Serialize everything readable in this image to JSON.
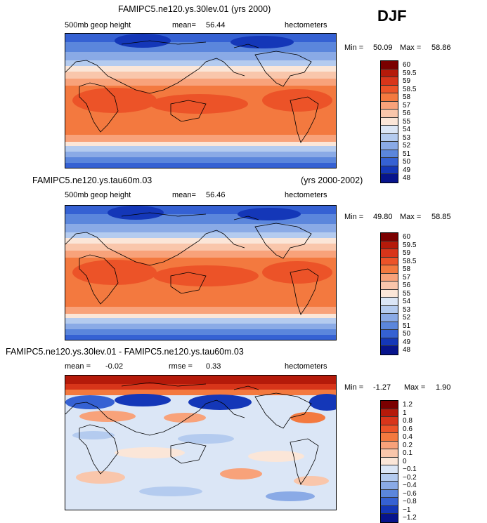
{
  "season": "DJF",
  "units": "hectometers",
  "field": "500mb geop height",
  "panel1": {
    "title": "FAMIPC5.ne120.ys.30lev.01 (yrs 2000)",
    "mean_label": "mean=",
    "mean": "56.44",
    "min_label": "Min =",
    "min": "50.09",
    "max_label": "Max =",
    "max": "58.86"
  },
  "panel2": {
    "title": "FAMIPC5.ne120.ys.tau60m.03",
    "years": "(yrs 2000-2002)",
    "mean_label": "mean=",
    "mean": "56.46",
    "min_label": "Min =",
    "min": "49.80",
    "max_label": "Max =",
    "max": "58.85"
  },
  "panel3": {
    "title": "FAMIPC5.ne120.ys.30lev.01 - FAMIPC5.ne120.ys.tau60m.03",
    "mean_label": "mean =",
    "mean": "-0.02",
    "rmse_label": "rmse =",
    "rmse": "0.33",
    "min_label": "Min =",
    "min": "-1.27",
    "max_label": "Max =",
    "max": "1.90"
  },
  "scale_abs": {
    "labels": [
      "60",
      "59.5",
      "59",
      "58.5",
      "58",
      "57",
      "56",
      "55",
      "54",
      "53",
      "52",
      "51",
      "50",
      "49",
      "48"
    ],
    "colors": [
      "#7a0000",
      "#b51a0a",
      "#d8351a",
      "#ec5328",
      "#f3793f",
      "#f8a27a",
      "#f9c6ab",
      "#fbe6d8",
      "#dbe6f6",
      "#b4cbef",
      "#8aaae6",
      "#5b86dc",
      "#3561d3",
      "#1437b8",
      "#07148c"
    ]
  },
  "scale_diff": {
    "labels": [
      "1.2",
      "1",
      "0.8",
      "0.6",
      "0.4",
      "0.2",
      "0.1",
      "0",
      "−0.1",
      "−0.2",
      "−0.4",
      "−0.6",
      "−0.8",
      "−1",
      "−1.2"
    ],
    "colors": [
      "#7a0000",
      "#b51a0a",
      "#d8351a",
      "#ec5328",
      "#f3793f",
      "#f8a27a",
      "#f9c6ab",
      "#fbe6d8",
      "#dbe6f6",
      "#b4cbef",
      "#8aaae6",
      "#5b86dc",
      "#3561d3",
      "#1437b8",
      "#07148c"
    ]
  }
}
